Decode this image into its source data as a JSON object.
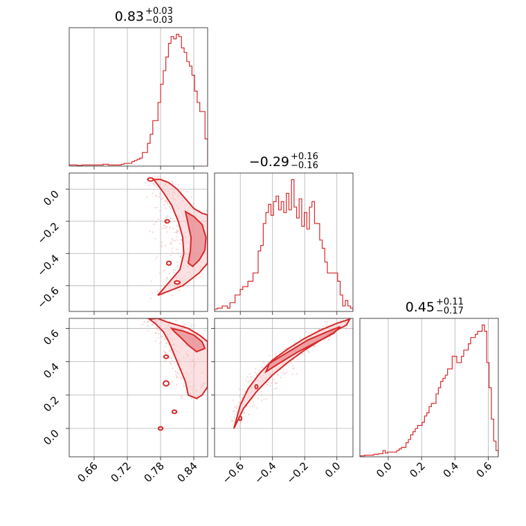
{
  "chart_data": {
    "type": "corner",
    "color": "#d62728",
    "parameters": [
      {
        "index": 0,
        "median": "0.83",
        "plus": "+0.03",
        "minus": "−0.03",
        "range": [
          0.615,
          0.865
        ]
      },
      {
        "index": 1,
        "median": "−0.29",
        "plus": "+0.16",
        "minus": "−0.16",
        "range": [
          -0.76,
          0.1
        ]
      },
      {
        "index": 2,
        "median": "0.45",
        "plus": "+0.11",
        "minus": "−0.17",
        "range": [
          -0.17,
          0.66
        ]
      }
    ],
    "ticks": {
      "p0": {
        "values": [
          0.66,
          0.72,
          0.78,
          0.84
        ],
        "labels": [
          "0.66",
          "0.72",
          "0.78",
          "0.84"
        ]
      },
      "p1": {
        "values": [
          -0.6,
          -0.4,
          -0.2,
          0.0
        ],
        "labels": [
          "−0.6",
          "−0.4",
          "−0.2",
          "0.0"
        ]
      },
      "p2": {
        "values": [
          0.0,
          0.2,
          0.4,
          0.6
        ],
        "labels": [
          "0.0",
          "0.2",
          "0.4",
          "0.6"
        ]
      }
    },
    "histograms": {
      "p0": {
        "x_start": 0.615,
        "x_end": 0.865,
        "heights": [
          0.5,
          0.5,
          0.5,
          0.3,
          0.3,
          0.5,
          0.5,
          0.5,
          0.5,
          0.5,
          0.5,
          0.5,
          0.5,
          0.8,
          0.8,
          0.5,
          0.5,
          0.5,
          0.5,
          0.5,
          0.8,
          1.2,
          1.2,
          1.2,
          2,
          2.5,
          3,
          3.5,
          6,
          6,
          10,
          14,
          20,
          20,
          28,
          36,
          42,
          48,
          54,
          57,
          56,
          58,
          57,
          52,
          50,
          46,
          44,
          40,
          33,
          28,
          24,
          24,
          12
        ]
      },
      "p1": {
        "x_start": -0.76,
        "x_end": 0.1,
        "heights": [
          0.4,
          0.6,
          0.6,
          1,
          1,
          0.6,
          1.6,
          1.6,
          3,
          3,
          4,
          4.5,
          4.5,
          5.5,
          5.5,
          7,
          7,
          11,
          12,
          16,
          18,
          19.5,
          17.5,
          20,
          21,
          18.5,
          20,
          18,
          21.5,
          18.5,
          24,
          19,
          17,
          20.5,
          15.5,
          18,
          15,
          19,
          20,
          16,
          16,
          13,
          11.5,
          9,
          7,
          7,
          7,
          7,
          5.5,
          3,
          1,
          2,
          1,
          0.6
        ]
      },
      "p2": {
        "x_start": -0.17,
        "x_end": 0.66,
        "heights": [
          0.3,
          0.3,
          0.5,
          0.5,
          0.5,
          0.5,
          0.8,
          0.8,
          1,
          1,
          2,
          1.2,
          1.5,
          1.5,
          1.5,
          1.5,
          2,
          2.5,
          3,
          3,
          4.5,
          5.5,
          7,
          8,
          9,
          10,
          10,
          11,
          13,
          14,
          16,
          17,
          17,
          20,
          22,
          24,
          25,
          26,
          28,
          28,
          32,
          32,
          30,
          30,
          32,
          34,
          34,
          36,
          38,
          38,
          39,
          40,
          40,
          42,
          40,
          30,
          22,
          12,
          5,
          2
        ]
      }
    },
    "scatter_shapes": {
      "p1_vs_p0": {
        "outer": [
          [
            0.768,
            0.06
          ],
          [
            0.78,
            0.06
          ],
          [
            0.795,
            0.04
          ],
          [
            0.81,
            0.0
          ],
          [
            0.825,
            -0.06
          ],
          [
            0.84,
            -0.12
          ],
          [
            0.855,
            -0.15
          ],
          [
            0.865,
            -0.16
          ],
          [
            0.865,
            -0.46
          ],
          [
            0.85,
            -0.52
          ],
          [
            0.835,
            -0.56
          ],
          [
            0.82,
            -0.6
          ],
          [
            0.805,
            -0.62
          ],
          [
            0.79,
            -0.64
          ],
          [
            0.775,
            -0.66
          ],
          [
            0.8,
            -0.56
          ],
          [
            0.815,
            -0.5
          ],
          [
            0.822,
            -0.4
          ],
          [
            0.82,
            -0.3
          ],
          [
            0.812,
            -0.2
          ],
          [
            0.8,
            -0.1
          ],
          [
            0.785,
            -0.02
          ],
          [
            0.772,
            0.04
          ]
        ],
        "inner": [
          [
            0.825,
            -0.14
          ],
          [
            0.84,
            -0.17
          ],
          [
            0.855,
            -0.22
          ],
          [
            0.862,
            -0.3
          ],
          [
            0.86,
            -0.38
          ],
          [
            0.85,
            -0.44
          ],
          [
            0.838,
            -0.48
          ],
          [
            0.83,
            -0.46
          ],
          [
            0.834,
            -0.38
          ],
          [
            0.835,
            -0.3
          ],
          [
            0.83,
            -0.22
          ]
        ],
        "islands": [
          [
            0.762,
            0.06,
            0.005,
            0.01
          ],
          [
            0.795,
            -0.46,
            0.004,
            0.012
          ],
          [
            0.792,
            -0.2,
            0.004,
            0.01
          ],
          [
            0.81,
            -0.58,
            0.005,
            0.01
          ]
        ]
      },
      "p2_vs_p0": {
        "outer": [
          [
            0.76,
            0.655
          ],
          [
            0.775,
            0.66
          ],
          [
            0.79,
            0.64
          ],
          [
            0.81,
            0.62
          ],
          [
            0.83,
            0.6
          ],
          [
            0.85,
            0.56
          ],
          [
            0.865,
            0.52
          ],
          [
            0.865,
            0.25
          ],
          [
            0.855,
            0.2
          ],
          [
            0.845,
            0.18
          ],
          [
            0.83,
            0.2
          ],
          [
            0.825,
            0.28
          ],
          [
            0.815,
            0.36
          ],
          [
            0.805,
            0.44
          ],
          [
            0.795,
            0.52
          ],
          [
            0.785,
            0.58
          ],
          [
            0.77,
            0.63
          ]
        ],
        "inner": [
          [
            0.8,
            0.6
          ],
          [
            0.82,
            0.585
          ],
          [
            0.84,
            0.56
          ],
          [
            0.855,
            0.52
          ],
          [
            0.86,
            0.48
          ],
          [
            0.845,
            0.46
          ],
          [
            0.83,
            0.5
          ],
          [
            0.815,
            0.55
          ],
          [
            0.805,
            0.58
          ]
        ],
        "islands": [
          [
            0.79,
            0.27,
            0.005,
            0.015
          ],
          [
            0.78,
            0.0,
            0.004,
            0.01
          ],
          [
            0.805,
            0.1,
            0.004,
            0.01
          ],
          [
            0.79,
            0.43,
            0.004,
            0.01
          ]
        ]
      },
      "p2_vs_p1": {
        "outer": [
          [
            -0.64,
            0.0
          ],
          [
            -0.6,
            0.14
          ],
          [
            -0.55,
            0.24
          ],
          [
            -0.48,
            0.33
          ],
          [
            -0.4,
            0.41
          ],
          [
            -0.3,
            0.48
          ],
          [
            -0.2,
            0.54
          ],
          [
            -0.1,
            0.59
          ],
          [
            0.0,
            0.63
          ],
          [
            0.08,
            0.655
          ],
          [
            0.06,
            0.62
          ],
          [
            -0.02,
            0.58
          ],
          [
            -0.1,
            0.53
          ],
          [
            -0.2,
            0.47
          ],
          [
            -0.3,
            0.4
          ],
          [
            -0.4,
            0.32
          ],
          [
            -0.5,
            0.22
          ],
          [
            -0.58,
            0.12
          ],
          [
            -0.62,
            0.04
          ]
        ],
        "inner": [
          [
            -0.42,
            0.39
          ],
          [
            -0.3,
            0.46
          ],
          [
            -0.18,
            0.53
          ],
          [
            -0.06,
            0.58
          ],
          [
            0.02,
            0.61
          ],
          [
            -0.02,
            0.57
          ],
          [
            -0.12,
            0.52
          ],
          [
            -0.24,
            0.46
          ],
          [
            -0.36,
            0.39
          ],
          [
            -0.44,
            0.34
          ]
        ],
        "islands": [
          [
            -0.6,
            0.06,
            0.006,
            0.012
          ],
          [
            -0.5,
            0.25,
            0.006,
            0.012
          ]
        ]
      }
    }
  }
}
